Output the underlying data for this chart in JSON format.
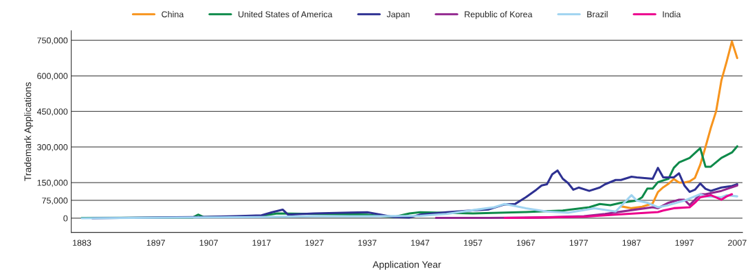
{
  "chart_data": {
    "type": "line",
    "xlabel": "Application Year",
    "ylabel": "Trademark Applications",
    "xlim": [
      1881,
      2008
    ],
    "xticks": [
      1883,
      1897,
      1907,
      1917,
      1927,
      1937,
      1947,
      1957,
      1967,
      1977,
      1987,
      1997,
      2007
    ],
    "ylim": [
      -60000,
      790000
    ],
    "yticks": [
      {
        "value": 0,
        "label": "0"
      },
      {
        "value": 75000,
        "label": "75,000"
      },
      {
        "value": 150000,
        "label": "150,000"
      },
      {
        "value": 300000,
        "label": "300,000"
      },
      {
        "value": 450000,
        "label": "450,000"
      },
      {
        "value": 600000,
        "label": "600,000"
      },
      {
        "value": 750000,
        "label": "750,000"
      }
    ],
    "grid": "y",
    "legend": "top",
    "marker": "none",
    "line_style": "solid",
    "series": [
      {
        "name": "China",
        "color": "#f7941d",
        "x": [
          1985,
          1987,
          1989,
          1991,
          1992,
          1993,
          1994,
          1995,
          1996,
          1997,
          1998,
          1999,
          2000,
          2001,
          2002,
          2003,
          2004,
          2005,
          2006,
          2007
        ],
        "values": [
          50000,
          42000,
          48000,
          62000,
          110000,
          130000,
          145000,
          165000,
          150000,
          150000,
          155000,
          170000,
          225000,
          300000,
          380000,
          450000,
          580000,
          660000,
          745000,
          675000
        ]
      },
      {
        "name": "United States of America",
        "color": "#0e8a4a",
        "x": [
          1883,
          1904,
          1905,
          1906,
          1912,
          1917,
          1920,
          1927,
          1937,
          1942,
          1945,
          1947,
          1957,
          1967,
          1974,
          1979,
          1981,
          1983,
          1985,
          1988,
          1989,
          1990,
          1991,
          1992,
          1994,
          1995,
          1996,
          1998,
          2000,
          2001,
          2002,
          2004,
          2006,
          2007
        ],
        "values": [
          1000,
          3000,
          15000,
          5000,
          6000,
          10000,
          20000,
          18000,
          15000,
          5000,
          20000,
          25000,
          20000,
          26000,
          32000,
          46000,
          60000,
          55000,
          65000,
          74000,
          88000,
          125000,
          125000,
          152000,
          166000,
          212000,
          235000,
          254000,
          295000,
          217000,
          217000,
          254000,
          277000,
          303000
        ]
      },
      {
        "name": "Japan",
        "color": "#2e3192",
        "x": [
          1885,
          1905,
          1912,
          1917,
          1919,
          1921,
          1922,
          1927,
          1937,
          1942,
          1945,
          1947,
          1952,
          1957,
          1960,
          1963,
          1965,
          1967,
          1969,
          1970,
          1971,
          1972,
          1973,
          1974,
          1975,
          1976,
          1977,
          1979,
          1981,
          1982,
          1984,
          1985,
          1987,
          1988,
          1991,
          1992,
          1993,
          1995,
          1996,
          1997,
          1998,
          1999,
          2000,
          2001,
          2002,
          2004,
          2006,
          2007
        ],
        "values": [
          0,
          5000,
          8000,
          12000,
          25000,
          36000,
          15000,
          20000,
          25000,
          5000,
          3000,
          15000,
          25000,
          33000,
          37000,
          58000,
          60000,
          88000,
          120000,
          138000,
          143000,
          185000,
          201000,
          166000,
          148000,
          120000,
          129000,
          115000,
          129000,
          143000,
          161000,
          161000,
          175000,
          172000,
          166000,
          212000,
          172000,
          172000,
          189000,
          138000,
          111000,
          120000,
          146000,
          124000,
          115000,
          129000,
          136000,
          143000
        ]
      },
      {
        "name": "Republic of Korea",
        "color": "#92278f",
        "x": [
          1950,
          1960,
          1970,
          1978,
          1982,
          1988,
          1991,
          1992,
          1994,
          1996,
          1997,
          1998,
          2000,
          2001,
          2004,
          2007
        ],
        "values": [
          1000,
          1000,
          3000,
          8000,
          18000,
          37000,
          46000,
          42000,
          65000,
          78000,
          78000,
          55000,
          101000,
          101000,
          115000,
          138000
        ]
      },
      {
        "name": "Brazil",
        "color": "#9fd3f0",
        "x": [
          1883,
          1897,
          1917,
          1927,
          1937,
          1947,
          1952,
          1958,
          1961,
          1963,
          1965,
          1967,
          1971,
          1975,
          1980,
          1984,
          1987,
          1988,
          1990,
          1992,
          1994,
          1997,
          2000,
          2001,
          2004,
          2005,
          2007
        ],
        "values": [
          0,
          2000,
          5000,
          8000,
          8000,
          10000,
          18000,
          37000,
          46000,
          60000,
          51000,
          42000,
          28000,
          23000,
          42000,
          28000,
          97000,
          74000,
          65000,
          46000,
          55000,
          74000,
          101000,
          92000,
          88000,
          97000,
          92000
        ]
      },
      {
        "name": "India",
        "color": "#ec008c",
        "x": [
          1963,
          1970,
          1978,
          1984,
          1992,
          1993,
          1995,
          1998,
          1999,
          2000,
          2002,
          2004,
          2005,
          2006
        ],
        "values": [
          1000,
          3000,
          6000,
          15000,
          26000,
          32000,
          42000,
          46000,
          65000,
          88000,
          97000,
          78000,
          92000,
          101000
        ]
      }
    ]
  }
}
